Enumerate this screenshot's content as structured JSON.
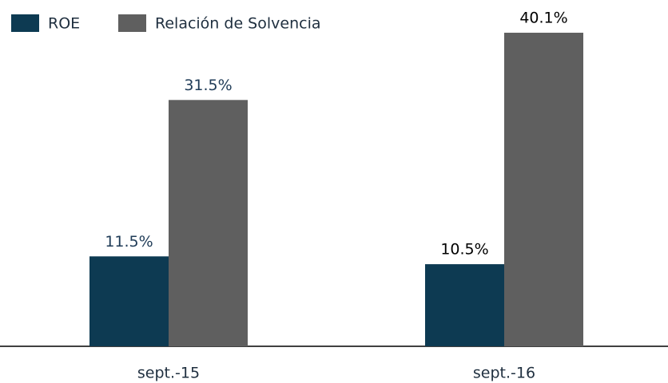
{
  "chart_data": {
    "type": "bar",
    "categories": [
      "sept.-15",
      "sept.-16"
    ],
    "series": [
      {
        "name": "ROE",
        "color": "#0d3a52",
        "values": [
          11.5,
          10.5
        ],
        "value_labels": [
          "11.5%",
          "10.5%"
        ]
      },
      {
        "name": "Relación de Solvencia",
        "color": "#5f5f5f",
        "values": [
          31.5,
          40.1
        ],
        "value_labels": [
          "31.5%",
          "40.1%"
        ]
      }
    ],
    "legend": "top-left"
  }
}
